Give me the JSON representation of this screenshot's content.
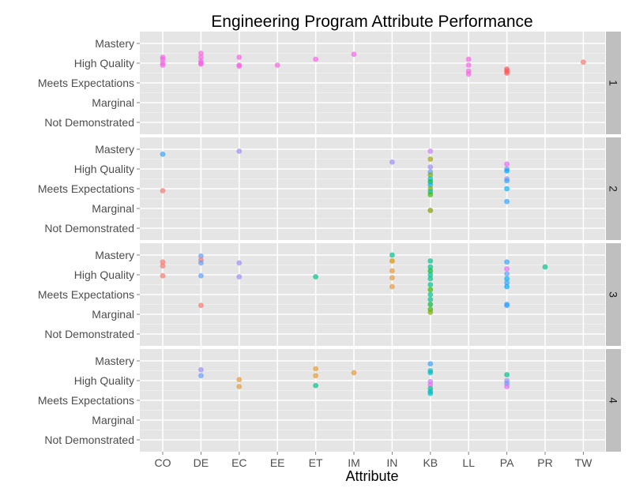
{
  "chart_data": {
    "type": "scatter",
    "title": "Engineering Program Attribute Performance",
    "xlabel": "Attribute",
    "ylabel": "",
    "categories": [
      "CO",
      "DE",
      "EC",
      "EE",
      "ET",
      "IM",
      "IN",
      "KB",
      "LL",
      "PA",
      "PR",
      "TW"
    ],
    "levels": [
      "Not Demonstrated",
      "Marginal",
      "Meets Expectations",
      "High Quality",
      "Mastery"
    ],
    "facets": [
      {
        "label": "1",
        "points": [
          {
            "x": "CO",
            "y": 3.3,
            "color": "#f564e3"
          },
          {
            "x": "CO",
            "y": 3.2,
            "color": "#f564e3"
          },
          {
            "x": "CO",
            "y": 3.0,
            "color": "#f564e3"
          },
          {
            "x": "CO",
            "y": 2.9,
            "color": "#f564e3"
          },
          {
            "x": "DE",
            "y": 3.5,
            "color": "#f564e3"
          },
          {
            "x": "DE",
            "y": 3.3,
            "color": "#f564e3"
          },
          {
            "x": "DE",
            "y": 3.1,
            "color": "#f564e3"
          },
          {
            "x": "DE",
            "y": 3.0,
            "color": "#f564e3"
          },
          {
            "x": "DE",
            "y": 2.95,
            "color": "#f564e3"
          },
          {
            "x": "EC",
            "y": 3.3,
            "color": "#f564e3"
          },
          {
            "x": "EC",
            "y": 2.9,
            "color": "#f564e3"
          },
          {
            "x": "EC",
            "y": 2.85,
            "color": "#f564e3"
          },
          {
            "x": "EE",
            "y": 2.9,
            "color": "#f564e3"
          },
          {
            "x": "ET",
            "y": 3.2,
            "color": "#f564e3"
          },
          {
            "x": "IM",
            "y": 3.45,
            "color": "#f564e3"
          },
          {
            "x": "LL",
            "y": 3.2,
            "color": "#f564e3"
          },
          {
            "x": "LL",
            "y": 2.9,
            "color": "#f564e3"
          },
          {
            "x": "LL",
            "y": 2.6,
            "color": "#f564e3"
          },
          {
            "x": "LL",
            "y": 2.45,
            "color": "#f564e3"
          },
          {
            "x": "PA",
            "y": 2.7,
            "color": "#ff5555"
          },
          {
            "x": "PA",
            "y": 2.6,
            "color": "#ff5555"
          },
          {
            "x": "PA",
            "y": 2.5,
            "color": "#ff5555"
          },
          {
            "x": "TW",
            "y": 3.05,
            "color": "#f8766d"
          }
        ]
      },
      {
        "label": "2",
        "points": [
          {
            "x": "CO",
            "y": 3.75,
            "color": "#35a2ff"
          },
          {
            "x": "CO",
            "y": 1.9,
            "color": "#f8766d"
          },
          {
            "x": "EC",
            "y": 3.9,
            "color": "#9d8df7"
          },
          {
            "x": "IN",
            "y": 3.35,
            "color": "#9d8df7"
          },
          {
            "x": "KB",
            "y": 3.9,
            "color": "#c77cff"
          },
          {
            "x": "KB",
            "y": 3.5,
            "color": "#a3a500"
          },
          {
            "x": "KB",
            "y": 3.1,
            "color": "#9d8df7"
          },
          {
            "x": "KB",
            "y": 2.85,
            "color": "#619cff"
          },
          {
            "x": "KB",
            "y": 2.7,
            "color": "#7cae00"
          },
          {
            "x": "KB",
            "y": 2.5,
            "color": "#00bfc4"
          },
          {
            "x": "KB",
            "y": 2.35,
            "color": "#00ba38"
          },
          {
            "x": "KB",
            "y": 2.2,
            "color": "#00b0f6"
          },
          {
            "x": "KB",
            "y": 2.0,
            "color": "#7cae00"
          },
          {
            "x": "KB",
            "y": 1.85,
            "color": "#00c19f"
          },
          {
            "x": "KB",
            "y": 1.7,
            "color": "#39b600"
          },
          {
            "x": "KB",
            "y": 0.9,
            "color": "#7c9d00"
          },
          {
            "x": "PA",
            "y": 3.25,
            "color": "#e76bf3"
          },
          {
            "x": "PA",
            "y": 3.0,
            "color": "#619cff"
          },
          {
            "x": "PA",
            "y": 2.9,
            "color": "#00a9ff"
          },
          {
            "x": "PA",
            "y": 2.5,
            "color": "#9590ff"
          },
          {
            "x": "PA",
            "y": 2.4,
            "color": "#35a2ff"
          },
          {
            "x": "PA",
            "y": 2.0,
            "color": "#00b0f6"
          },
          {
            "x": "PA",
            "y": 1.35,
            "color": "#35a2ff"
          }
        ]
      },
      {
        "label": "3",
        "points": [
          {
            "x": "CO",
            "y": 3.65,
            "color": "#f8766d"
          },
          {
            "x": "CO",
            "y": 3.45,
            "color": "#f8766d"
          },
          {
            "x": "CO",
            "y": 2.95,
            "color": "#f8766d"
          },
          {
            "x": "DE",
            "y": 3.95,
            "color": "#619cff"
          },
          {
            "x": "DE",
            "y": 3.75,
            "color": "#f8766d"
          },
          {
            "x": "DE",
            "y": 3.6,
            "color": "#619cff"
          },
          {
            "x": "DE",
            "y": 2.95,
            "color": "#619cff"
          },
          {
            "x": "DE",
            "y": 1.45,
            "color": "#f8766d"
          },
          {
            "x": "EC",
            "y": 3.6,
            "color": "#9d8df7"
          },
          {
            "x": "EC",
            "y": 2.9,
            "color": "#9d8df7"
          },
          {
            "x": "ET",
            "y": 2.9,
            "color": "#00c08b"
          },
          {
            "x": "IN",
            "y": 4.0,
            "color": "#00c08b"
          },
          {
            "x": "IN",
            "y": 3.7,
            "color": "#d89000"
          },
          {
            "x": "IN",
            "y": 3.2,
            "color": "#e59a37"
          },
          {
            "x": "IN",
            "y": 2.85,
            "color": "#e59a37"
          },
          {
            "x": "IN",
            "y": 2.4,
            "color": "#e59a37"
          },
          {
            "x": "KB",
            "y": 3.7,
            "color": "#00c08b"
          },
          {
            "x": "KB",
            "y": 3.4,
            "color": "#00c08b"
          },
          {
            "x": "KB",
            "y": 3.2,
            "color": "#00ba38"
          },
          {
            "x": "KB",
            "y": 3.0,
            "color": "#00c08b"
          },
          {
            "x": "KB",
            "y": 2.8,
            "color": "#00c08b"
          },
          {
            "x": "KB",
            "y": 2.5,
            "color": "#00c08b"
          },
          {
            "x": "KB",
            "y": 2.25,
            "color": "#39b600"
          },
          {
            "x": "KB",
            "y": 2.0,
            "color": "#00c08b"
          },
          {
            "x": "KB",
            "y": 1.75,
            "color": "#00c08b"
          },
          {
            "x": "KB",
            "y": 1.5,
            "color": "#00ba38"
          },
          {
            "x": "KB",
            "y": 1.25,
            "color": "#39b600"
          },
          {
            "x": "KB",
            "y": 1.1,
            "color": "#7cae00"
          },
          {
            "x": "PA",
            "y": 3.65,
            "color": "#35a2ff"
          },
          {
            "x": "PA",
            "y": 3.3,
            "color": "#e76bf3"
          },
          {
            "x": "PA",
            "y": 3.05,
            "color": "#619cff"
          },
          {
            "x": "PA",
            "y": 2.8,
            "color": "#00b0f6"
          },
          {
            "x": "PA",
            "y": 2.6,
            "color": "#35a2ff"
          },
          {
            "x": "PA",
            "y": 2.4,
            "color": "#00a9ff"
          },
          {
            "x": "PA",
            "y": 1.5,
            "color": "#35a2ff"
          },
          {
            "x": "PA",
            "y": 1.45,
            "color": "#35a2ff"
          },
          {
            "x": "PR",
            "y": 3.4,
            "color": "#00c08b"
          }
        ]
      },
      {
        "label": "4",
        "points": [
          {
            "x": "DE",
            "y": 3.55,
            "color": "#9d8df7"
          },
          {
            "x": "DE",
            "y": 3.25,
            "color": "#619cff"
          },
          {
            "x": "EC",
            "y": 3.05,
            "color": "#e59a37"
          },
          {
            "x": "EC",
            "y": 2.7,
            "color": "#e59a37"
          },
          {
            "x": "ET",
            "y": 3.6,
            "color": "#e59a37"
          },
          {
            "x": "ET",
            "y": 3.25,
            "color": "#e59a37"
          },
          {
            "x": "ET",
            "y": 2.75,
            "color": "#00c08b"
          },
          {
            "x": "IM",
            "y": 3.4,
            "color": "#e59a37"
          },
          {
            "x": "KB",
            "y": 3.85,
            "color": "#35a2ff"
          },
          {
            "x": "KB",
            "y": 3.5,
            "color": "#00bfc4"
          },
          {
            "x": "KB",
            "y": 3.4,
            "color": "#00bfc4"
          },
          {
            "x": "KB",
            "y": 2.95,
            "color": "#c77cff"
          },
          {
            "x": "KB",
            "y": 2.8,
            "color": "#e76bf3"
          },
          {
            "x": "KB",
            "y": 2.6,
            "color": "#00c08b"
          },
          {
            "x": "KB",
            "y": 2.45,
            "color": "#00bfc4"
          },
          {
            "x": "KB",
            "y": 2.35,
            "color": "#00bfc4"
          },
          {
            "x": "PA",
            "y": 3.3,
            "color": "#00c08b"
          },
          {
            "x": "PA",
            "y": 3.0,
            "color": "#9d8df7"
          },
          {
            "x": "PA",
            "y": 2.85,
            "color": "#619cff"
          },
          {
            "x": "PA",
            "y": 2.7,
            "color": "#e76bf3"
          }
        ]
      }
    ],
    "grid": true,
    "legend": "none",
    "facet_strip_position": "right"
  }
}
